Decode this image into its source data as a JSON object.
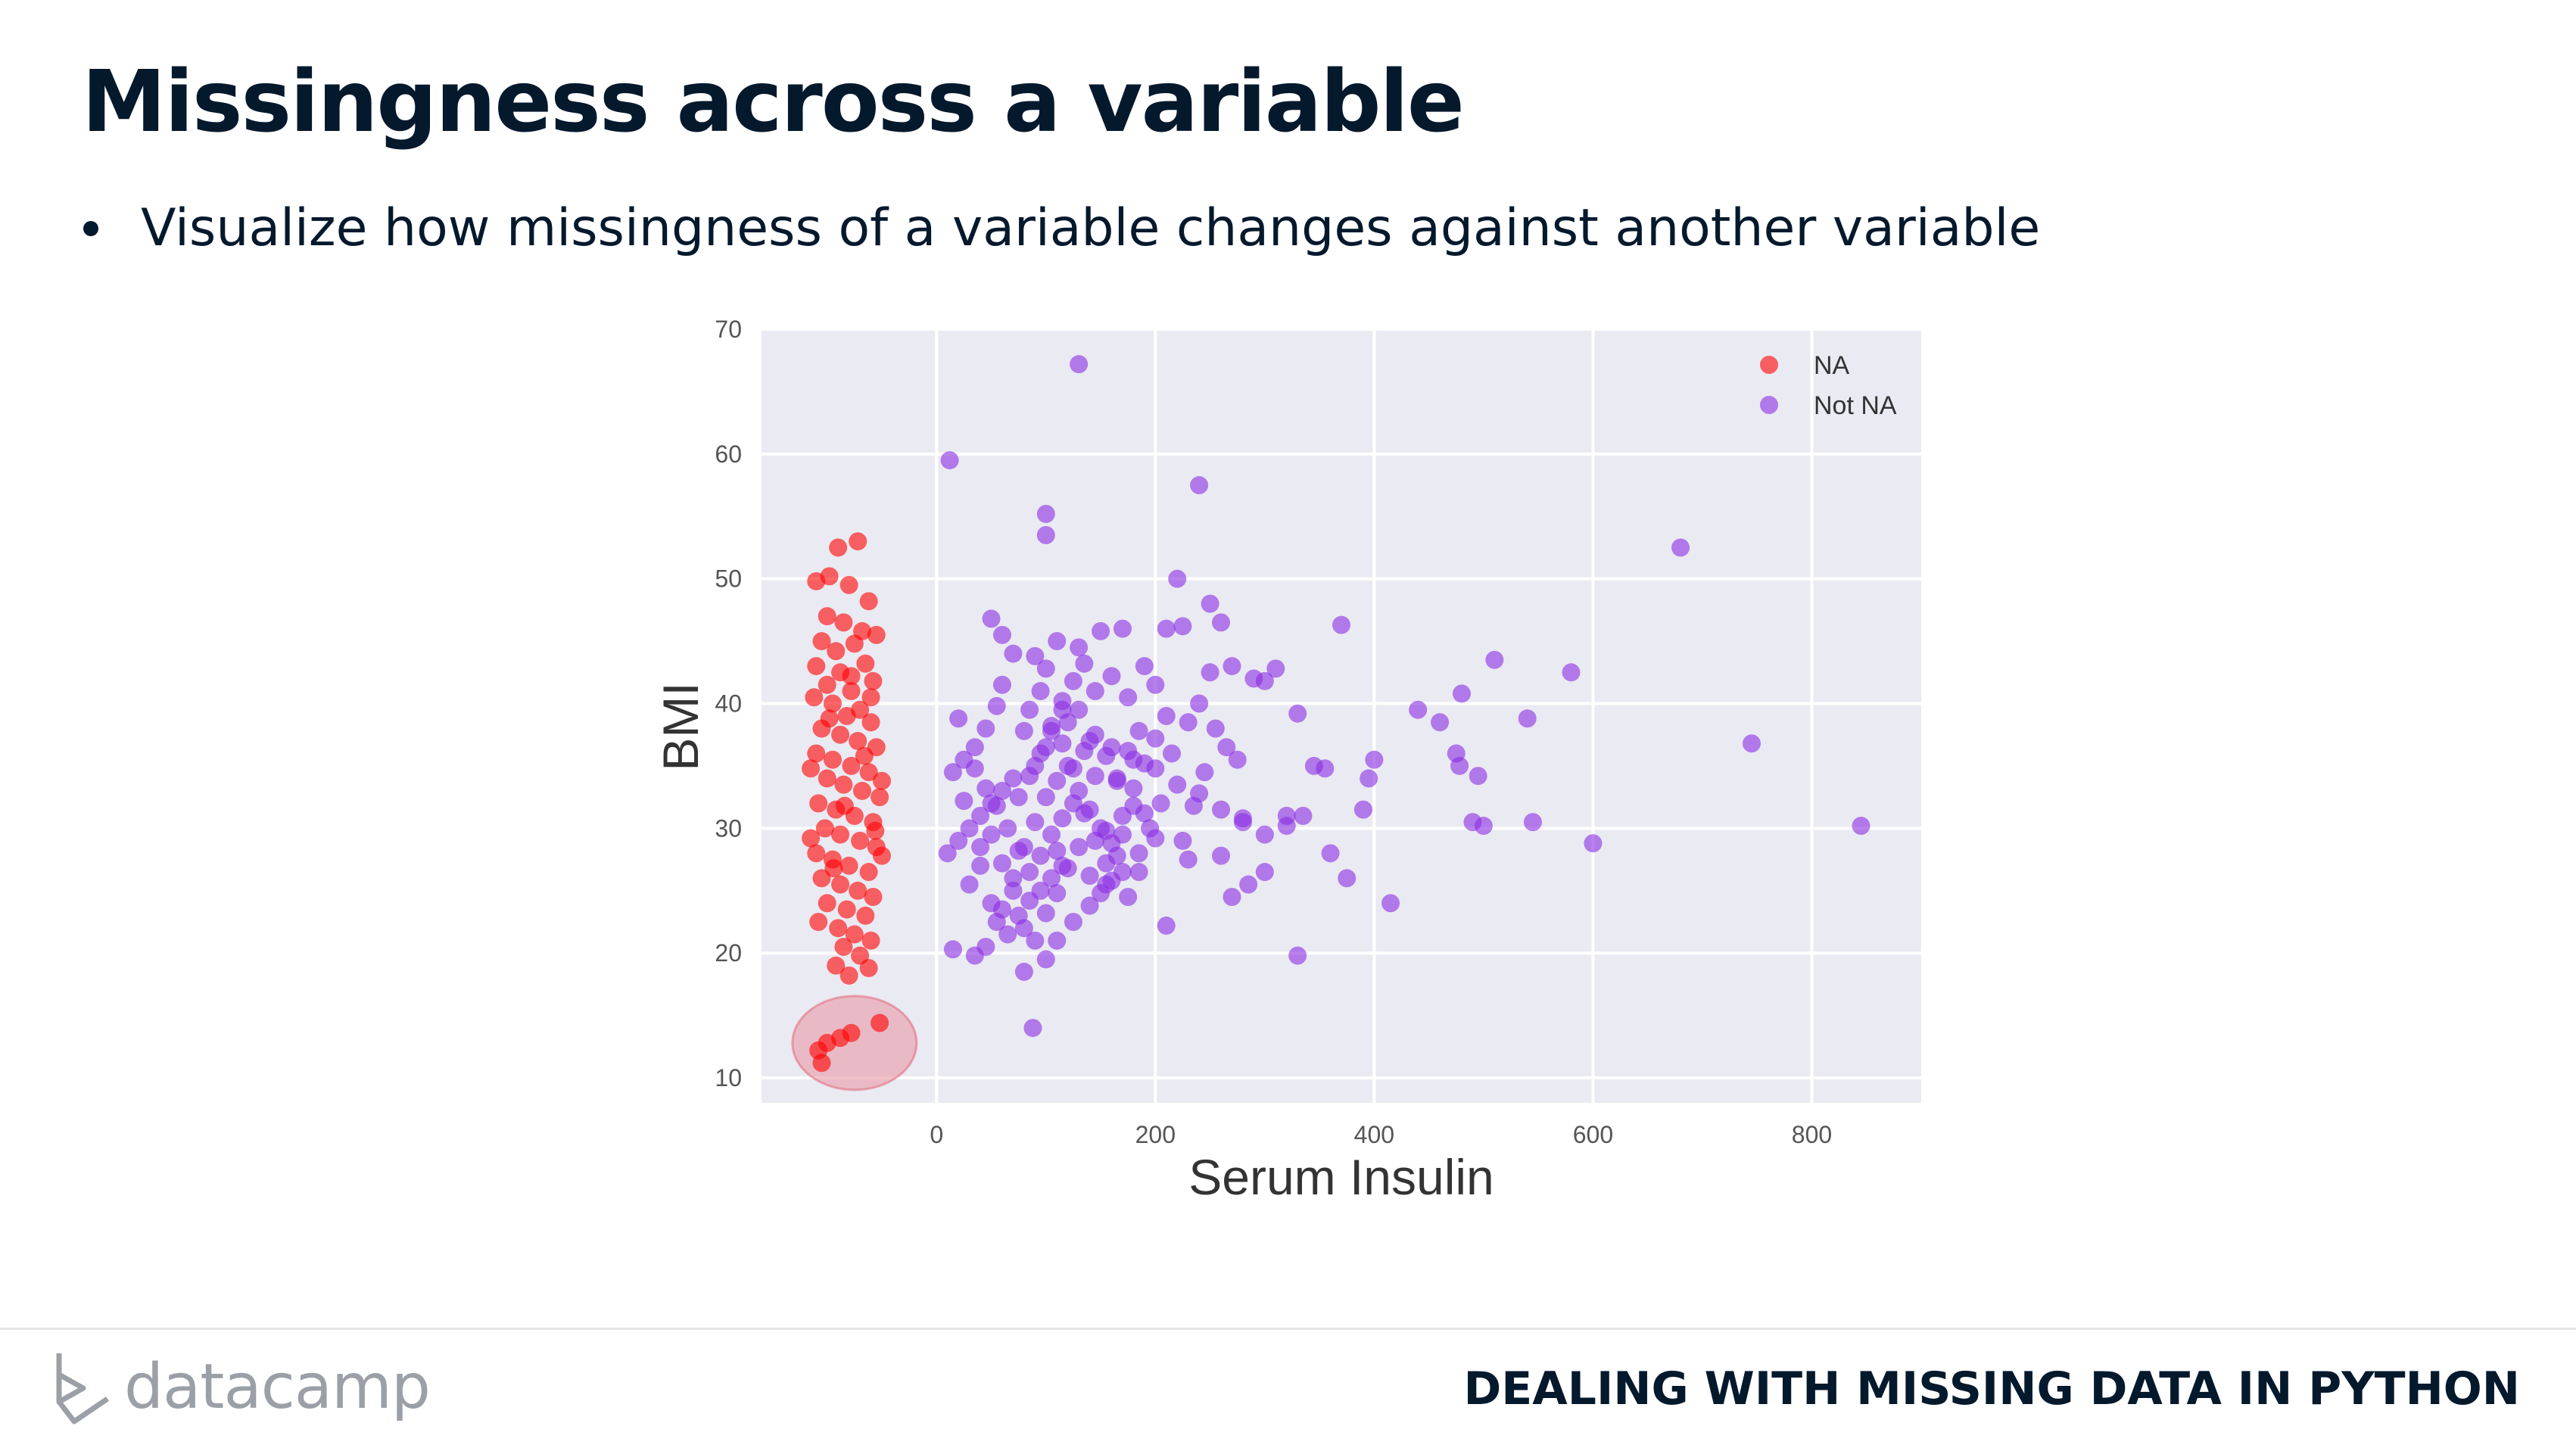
{
  "slide": {
    "title": "Missingness across a variable",
    "bullet": "Visualize how missingness of a variable changes against another variable"
  },
  "footer": {
    "logo_text": "datacamp",
    "course_name": "DEALING WITH MISSING DATA IN PYTHON"
  },
  "chart_data": {
    "type": "scatter",
    "xlabel": "Serum Insulin",
    "ylabel": "BMI",
    "xlim": [
      -160,
      900
    ],
    "ylim": [
      8,
      70
    ],
    "xticks": [
      0,
      200,
      400,
      600,
      800
    ],
    "yticks": [
      10,
      20,
      30,
      40,
      50,
      60,
      70
    ],
    "grid": true,
    "legend_position": "top-right",
    "background": "#eaeaf2",
    "highlight": {
      "x": -75,
      "y": 12.8
    },
    "series": [
      {
        "name": "NA",
        "color": "#ff0000",
        "points": [
          [
            -110,
            49.8
          ],
          [
            -98,
            50.2
          ],
          [
            -72,
            53.0
          ],
          [
            -90,
            52.5
          ],
          [
            -80,
            49.5
          ],
          [
            -62,
            48.2
          ],
          [
            -100,
            47.0
          ],
          [
            -85,
            46.5
          ],
          [
            -68,
            45.8
          ],
          [
            -105,
            45.0
          ],
          [
            -92,
            44.2
          ],
          [
            -75,
            44.8
          ],
          [
            -55,
            45.5
          ],
          [
            -110,
            43.0
          ],
          [
            -88,
            42.5
          ],
          [
            -65,
            43.2
          ],
          [
            -100,
            41.5
          ],
          [
            -78,
            41.0
          ],
          [
            -58,
            41.8
          ],
          [
            -112,
            40.5
          ],
          [
            -95,
            40.0
          ],
          [
            -70,
            39.5
          ],
          [
            -82,
            39.0
          ],
          [
            -60,
            38.5
          ],
          [
            -105,
            38.0
          ],
          [
            -88,
            37.5
          ],
          [
            -72,
            37.0
          ],
          [
            -55,
            36.5
          ],
          [
            -110,
            36.0
          ],
          [
            -95,
            35.5
          ],
          [
            -78,
            35.0
          ],
          [
            -62,
            34.5
          ],
          [
            -100,
            34.0
          ],
          [
            -85,
            33.5
          ],
          [
            -68,
            33.0
          ],
          [
            -52,
            32.5
          ],
          [
            -108,
            32.0
          ],
          [
            -92,
            31.5
          ],
          [
            -75,
            31.0
          ],
          [
            -58,
            30.5
          ],
          [
            -102,
            30.0
          ],
          [
            -88,
            29.5
          ],
          [
            -70,
            29.0
          ],
          [
            -55,
            28.5
          ],
          [
            -110,
            28.0
          ],
          [
            -95,
            27.5
          ],
          [
            -80,
            27.0
          ],
          [
            -62,
            26.5
          ],
          [
            -105,
            26.0
          ],
          [
            -88,
            25.5
          ],
          [
            -72,
            25.0
          ],
          [
            -58,
            24.5
          ],
          [
            -100,
            24.0
          ],
          [
            -82,
            23.5
          ],
          [
            -65,
            23.0
          ],
          [
            -108,
            22.5
          ],
          [
            -90,
            22.0
          ],
          [
            -75,
            21.5
          ],
          [
            -60,
            21.0
          ],
          [
            -85,
            20.5
          ],
          [
            -70,
            19.8
          ],
          [
            -92,
            19.0
          ],
          [
            -62,
            18.8
          ],
          [
            -80,
            18.2
          ],
          [
            -98,
            38.8
          ],
          [
            -60,
            40.5
          ],
          [
            -115,
            34.8
          ],
          [
            -50,
            33.8
          ],
          [
            -115,
            29.2
          ],
          [
            -50,
            27.8
          ],
          [
            -78,
            42.2
          ],
          [
            -66,
            35.8
          ],
          [
            -94,
            26.8
          ],
          [
            -84,
            31.8
          ],
          [
            -56,
            29.8
          ],
          [
            -108,
            12.2
          ],
          [
            -100,
            12.8
          ],
          [
            -88,
            13.2
          ],
          [
            -78,
            13.6
          ],
          [
            -52,
            14.4
          ],
          [
            -105,
            11.2
          ]
        ]
      },
      {
        "name": "Not NA",
        "color": "#8a2be2",
        "points": [
          [
            130,
            67.2
          ],
          [
            12,
            59.5
          ],
          [
            240,
            57.5
          ],
          [
            100,
            55.2
          ],
          [
            100,
            53.5
          ],
          [
            680,
            52.5
          ],
          [
            220,
            50.0
          ],
          [
            210,
            46.0
          ],
          [
            225,
            46.2
          ],
          [
            250,
            48.0
          ],
          [
            370,
            46.3
          ],
          [
            260,
            46.5
          ],
          [
            50,
            46.8
          ],
          [
            60,
            45.5
          ],
          [
            110,
            45.0
          ],
          [
            130,
            44.5
          ],
          [
            150,
            45.8
          ],
          [
            170,
            46.0
          ],
          [
            510,
            43.5
          ],
          [
            580,
            42.5
          ],
          [
            290,
            42.0
          ],
          [
            270,
            43.0
          ],
          [
            310,
            42.8
          ],
          [
            250,
            42.5
          ],
          [
            300,
            41.8
          ],
          [
            480,
            40.8
          ],
          [
            440,
            39.5
          ],
          [
            460,
            38.5
          ],
          [
            540,
            38.8
          ],
          [
            330,
            39.2
          ],
          [
            120,
            38.5
          ],
          [
            140,
            37.0
          ],
          [
            160,
            36.5
          ],
          [
            180,
            35.5
          ],
          [
            200,
            34.8
          ],
          [
            220,
            33.5
          ],
          [
            240,
            32.8
          ],
          [
            260,
            31.5
          ],
          [
            280,
            30.8
          ],
          [
            300,
            29.5
          ],
          [
            80,
            37.8
          ],
          [
            100,
            36.5
          ],
          [
            90,
            35.0
          ],
          [
            70,
            34.0
          ],
          [
            60,
            33.0
          ],
          [
            50,
            32.0
          ],
          [
            40,
            31.0
          ],
          [
            30,
            30.0
          ],
          [
            20,
            29.0
          ],
          [
            10,
            28.0
          ],
          [
            15,
            20.3
          ],
          [
            35,
            19.8
          ],
          [
            45,
            20.5
          ],
          [
            55,
            22.5
          ],
          [
            65,
            21.5
          ],
          [
            75,
            23.0
          ],
          [
            85,
            24.2
          ],
          [
            95,
            25.0
          ],
          [
            105,
            26.0
          ],
          [
            115,
            27.0
          ],
          [
            88,
            14.0
          ],
          [
            80,
            18.5
          ],
          [
            100,
            19.5
          ],
          [
            110,
            21.0
          ],
          [
            125,
            22.5
          ],
          [
            140,
            23.8
          ],
          [
            155,
            25.5
          ],
          [
            170,
            26.5
          ],
          [
            185,
            28.0
          ],
          [
            200,
            29.2
          ],
          [
            330,
            19.8
          ],
          [
            280,
            30.5
          ],
          [
            320,
            31.0
          ],
          [
            345,
            35.0
          ],
          [
            355,
            34.8
          ],
          [
            400,
            35.5
          ],
          [
            395,
            34.0
          ],
          [
            390,
            31.5
          ],
          [
            415,
            24.0
          ],
          [
            375,
            26.0
          ],
          [
            360,
            28.0
          ],
          [
            475,
            36.0
          ],
          [
            478,
            35.0
          ],
          [
            490,
            30.5
          ],
          [
            500,
            30.2
          ],
          [
            495,
            34.2
          ],
          [
            545,
            30.5
          ],
          [
            600,
            28.8
          ],
          [
            745,
            36.8
          ],
          [
            845,
            30.2
          ],
          [
            210,
            22.2
          ],
          [
            230,
            27.5
          ],
          [
            260,
            27.8
          ],
          [
            270,
            24.5
          ],
          [
            285,
            25.5
          ],
          [
            300,
            26.5
          ],
          [
            320,
            30.2
          ],
          [
            335,
            31.0
          ],
          [
            200,
            41.5
          ],
          [
            190,
            43.0
          ],
          [
            175,
            40.5
          ],
          [
            160,
            42.2
          ],
          [
            145,
            41.0
          ],
          [
            130,
            39.5
          ],
          [
            115,
            40.2
          ],
          [
            100,
            42.8
          ],
          [
            90,
            43.8
          ],
          [
            70,
            44.0
          ],
          [
            60,
            41.5
          ],
          [
            55,
            39.8
          ],
          [
            45,
            38.0
          ],
          [
            35,
            36.5
          ],
          [
            25,
            35.5
          ],
          [
            15,
            34.5
          ],
          [
            20,
            38.8
          ],
          [
            40,
            27.0
          ],
          [
            30,
            25.5
          ],
          [
            50,
            24.0
          ],
          [
            60,
            23.5
          ],
          [
            70,
            26.0
          ],
          [
            80,
            28.5
          ],
          [
            90,
            30.5
          ],
          [
            100,
            32.5
          ],
          [
            110,
            33.8
          ],
          [
            120,
            35.0
          ],
          [
            130,
            33.0
          ],
          [
            140,
            31.5
          ],
          [
            150,
            30.0
          ],
          [
            160,
            28.8
          ],
          [
            170,
            31.0
          ],
          [
            180,
            33.2
          ],
          [
            190,
            35.2
          ],
          [
            200,
            37.2
          ],
          [
            210,
            39.0
          ],
          [
            215,
            36.0
          ],
          [
            205,
            32.0
          ],
          [
            195,
            30.0
          ],
          [
            185,
            26.5
          ],
          [
            175,
            24.5
          ],
          [
            165,
            27.8
          ],
          [
            155,
            29.8
          ],
          [
            145,
            34.2
          ],
          [
            135,
            36.2
          ],
          [
            125,
            32.0
          ],
          [
            115,
            30.8
          ],
          [
            105,
            29.5
          ],
          [
            95,
            27.8
          ],
          [
            85,
            26.5
          ],
          [
            75,
            28.2
          ],
          [
            65,
            30.0
          ],
          [
            55,
            31.8
          ],
          [
            45,
            33.2
          ],
          [
            35,
            34.8
          ],
          [
            25,
            32.2
          ],
          [
            85,
            39.5
          ],
          [
            95,
            41.0
          ],
          [
            105,
            37.8
          ],
          [
            115,
            36.8
          ],
          [
            125,
            34.8
          ],
          [
            135,
            31.2
          ],
          [
            145,
            29.0
          ],
          [
            155,
            27.2
          ],
          [
            165,
            34.0
          ],
          [
            175,
            36.2
          ],
          [
            185,
            37.8
          ],
          [
            190,
            31.2
          ],
          [
            230,
            38.5
          ],
          [
            240,
            40.0
          ],
          [
            255,
            38.0
          ],
          [
            265,
            36.5
          ],
          [
            275,
            35.5
          ],
          [
            245,
            34.5
          ],
          [
            235,
            31.8
          ],
          [
            225,
            29.0
          ],
          [
            110,
            24.8
          ],
          [
            120,
            26.8
          ],
          [
            130,
            28.5
          ],
          [
            140,
            26.2
          ],
          [
            150,
            24.8
          ],
          [
            160,
            25.8
          ],
          [
            170,
            29.5
          ],
          [
            180,
            31.8
          ],
          [
            75,
            32.5
          ],
          [
            85,
            34.2
          ],
          [
            95,
            36.0
          ],
          [
            105,
            38.2
          ],
          [
            115,
            39.5
          ],
          [
            125,
            41.8
          ],
          [
            135,
            43.2
          ],
          [
            145,
            37.5
          ],
          [
            155,
            35.8
          ],
          [
            165,
            33.8
          ],
          [
            50,
            29.5
          ],
          [
            40,
            28.5
          ],
          [
            60,
            27.2
          ],
          [
            70,
            25.0
          ],
          [
            80,
            22.0
          ],
          [
            90,
            21.0
          ],
          [
            100,
            23.2
          ],
          [
            110,
            28.2
          ]
        ]
      }
    ]
  }
}
